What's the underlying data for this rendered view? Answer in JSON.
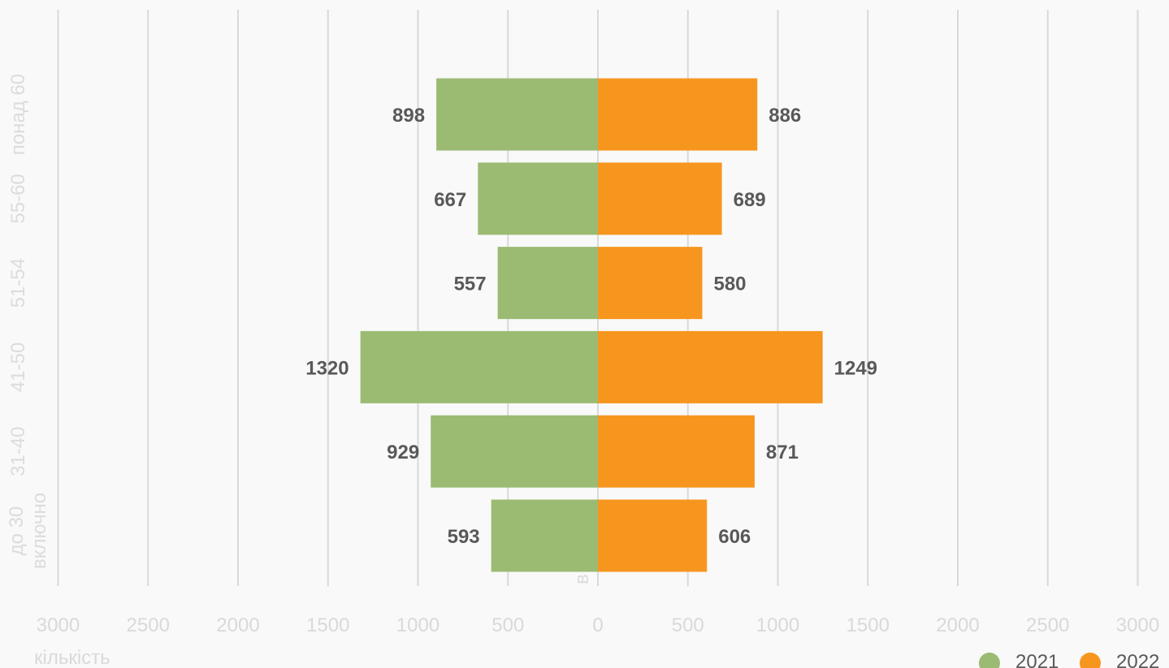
{
  "chart_data": {
    "type": "bar",
    "orientation": "horizontal",
    "layout": "population-pyramid",
    "categories": [
      "до 30 включно",
      "31-40",
      "41-50",
      "51-54",
      "55-60",
      "понад 60"
    ],
    "series": [
      {
        "name": "2021",
        "values": [
          593,
          929,
          1320,
          557,
          667,
          898
        ],
        "color": "#9bbb73",
        "side": "left"
      },
      {
        "name": "2022",
        "values": [
          606,
          871,
          1249,
          580,
          689,
          886
        ],
        "color": "#f7961e",
        "side": "right"
      }
    ],
    "xticks": [
      "3000",
      "2500",
      "2000",
      "1500",
      "1000",
      "500",
      "0",
      "500",
      "1000",
      "1500",
      "2000",
      "2500",
      "3000"
    ],
    "xlabel": "кількість",
    "extra_label": "в",
    "xlim": [
      -3000,
      3000
    ],
    "grid": true,
    "legend_position": "bottom-right"
  }
}
